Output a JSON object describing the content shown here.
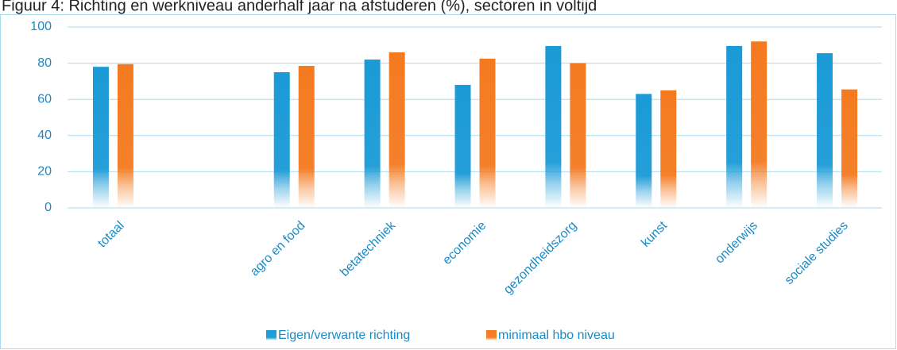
{
  "chart_data": {
    "type": "bar",
    "title": "Figuur 4: Richting en werkniveau anderhalf jaar na afstuderen (%), sectoren in voltijd",
    "categories": [
      "totaal",
      null,
      "agro en food",
      "betatechniek",
      "economie",
      "gezondheidszorg",
      "kunst",
      "onderwijs",
      "sociale studies"
    ],
    "series": [
      {
        "name": "Eigen/verwante richting",
        "color": "#1a9ad6",
        "values": [
          78,
          null,
          75,
          82,
          68,
          89.5,
          63,
          89.5,
          85.5
        ]
      },
      {
        "name": "minimaal hbo niveau",
        "color": "#f47a20",
        "values": [
          79.5,
          null,
          78.5,
          86,
          82.5,
          80,
          65,
          92,
          65.5
        ]
      }
    ],
    "ylim": [
      0,
      100
    ],
    "yticks": [
      0,
      20,
      40,
      60,
      80,
      100
    ],
    "grid": true,
    "legend": "bottom"
  }
}
